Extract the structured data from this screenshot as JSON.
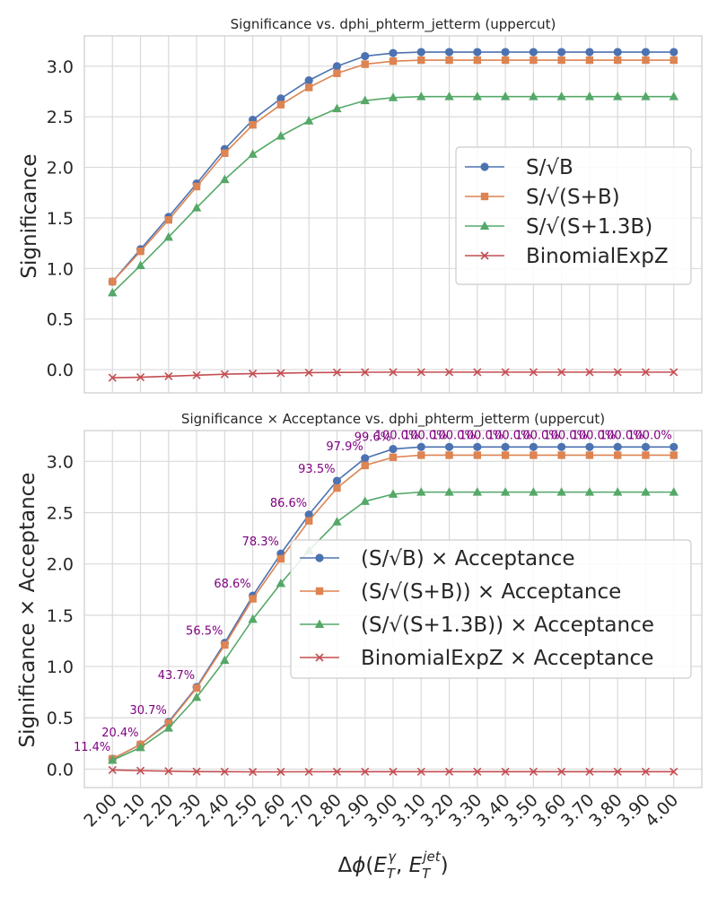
{
  "chart_data": [
    {
      "type": "line",
      "title": "Significance vs. dphi_phterm_jetterm (uppercut)",
      "xlabel": "",
      "ylabel": "Significance",
      "ylim": [
        -0.23,
        3.3
      ],
      "yticks": [
        "0.0",
        "0.5",
        "1.0",
        "1.5",
        "2.0",
        "2.5",
        "3.0"
      ],
      "legend_position": "center-right",
      "x": [
        2.0,
        2.1,
        2.2,
        2.3,
        2.4,
        2.5,
        2.6,
        2.7,
        2.8,
        2.9,
        3.0,
        3.1,
        3.2,
        3.3,
        3.4,
        3.5,
        3.6,
        3.7,
        3.8,
        3.9,
        4.0
      ],
      "series": [
        {
          "name": "S/√B",
          "color": "#4c72b0",
          "marker": "circle",
          "values": [
            0.87,
            1.19,
            1.51,
            1.84,
            2.18,
            2.47,
            2.68,
            2.86,
            3.0,
            3.1,
            3.13,
            3.14,
            3.14,
            3.14,
            3.14,
            3.14,
            3.14,
            3.14,
            3.14,
            3.14,
            3.14
          ]
        },
        {
          "name": "S/√(S+B)",
          "color": "#dd8452",
          "marker": "square",
          "values": [
            0.87,
            1.17,
            1.48,
            1.81,
            2.14,
            2.42,
            2.62,
            2.79,
            2.93,
            3.02,
            3.05,
            3.06,
            3.06,
            3.06,
            3.06,
            3.06,
            3.06,
            3.06,
            3.06,
            3.06,
            3.06
          ]
        },
        {
          "name": "S/√(S+1.3B)",
          "color": "#55a868",
          "marker": "triangle",
          "values": [
            0.76,
            1.03,
            1.31,
            1.6,
            1.88,
            2.13,
            2.31,
            2.46,
            2.58,
            2.66,
            2.69,
            2.7,
            2.7,
            2.7,
            2.7,
            2.7,
            2.7,
            2.7,
            2.7,
            2.7,
            2.7
          ]
        },
        {
          "name": "BinomialExpZ",
          "color": "#c44e52",
          "marker": "x",
          "values": [
            -0.08,
            -0.075,
            -0.065,
            -0.055,
            -0.045,
            -0.04,
            -0.035,
            -0.03,
            -0.028,
            -0.026,
            -0.025,
            -0.025,
            -0.025,
            -0.025,
            -0.025,
            -0.025,
            -0.025,
            -0.025,
            -0.025,
            -0.025,
            -0.025
          ]
        }
      ]
    },
    {
      "type": "line",
      "title": "Significance × Acceptance vs. dphi_phterm_jetterm (uppercut)",
      "xlabel": "Δϕ(E_T^γ, E_T^jet)",
      "ylabel": "Significance × Acceptance",
      "ylim": [
        -0.18,
        3.3
      ],
      "yticks": [
        "0.0",
        "0.5",
        "1.0",
        "1.5",
        "2.0",
        "2.5",
        "3.0"
      ],
      "xticks": [
        "2.00",
        "2.10",
        "2.20",
        "2.30",
        "2.40",
        "2.50",
        "2.60",
        "2.70",
        "2.80",
        "2.90",
        "3.00",
        "3.10",
        "3.20",
        "3.30",
        "3.40",
        "3.50",
        "3.60",
        "3.70",
        "3.80",
        "3.90",
        "4.00"
      ],
      "legend_position": "center-right",
      "x": [
        2.0,
        2.1,
        2.2,
        2.3,
        2.4,
        2.5,
        2.6,
        2.7,
        2.8,
        2.9,
        3.0,
        3.1,
        3.2,
        3.3,
        3.4,
        3.5,
        3.6,
        3.7,
        3.8,
        3.9,
        4.0
      ],
      "acceptance_labels": [
        "11.4%",
        "20.4%",
        "30.7%",
        "43.7%",
        "56.5%",
        "68.6%",
        "78.3%",
        "86.6%",
        "93.5%",
        "97.9%",
        "99.6%",
        "100.0%",
        "100.0%",
        "100.0%",
        "100.0%",
        "100.0%",
        "100.0%",
        "100.0%",
        "100.0%",
        "100.0%",
        "100.0%"
      ],
      "series": [
        {
          "name": "(S/√B) × Acceptance",
          "color": "#4c72b0",
          "marker": "circle",
          "values": [
            0.1,
            0.24,
            0.46,
            0.8,
            1.23,
            1.69,
            2.1,
            2.48,
            2.81,
            3.03,
            3.12,
            3.14,
            3.14,
            3.14,
            3.14,
            3.14,
            3.14,
            3.14,
            3.14,
            3.14,
            3.14
          ]
        },
        {
          "name": "(S/√(S+B)) × Acceptance",
          "color": "#dd8452",
          "marker": "square",
          "values": [
            0.1,
            0.24,
            0.45,
            0.79,
            1.21,
            1.66,
            2.05,
            2.42,
            2.74,
            2.96,
            3.04,
            3.06,
            3.06,
            3.06,
            3.06,
            3.06,
            3.06,
            3.06,
            3.06,
            3.06,
            3.06
          ]
        },
        {
          "name": "(S/√(S+1.3B)) × Acceptance",
          "color": "#55a868",
          "marker": "triangle",
          "values": [
            0.087,
            0.21,
            0.4,
            0.7,
            1.06,
            1.46,
            1.81,
            2.13,
            2.41,
            2.61,
            2.68,
            2.7,
            2.7,
            2.7,
            2.7,
            2.7,
            2.7,
            2.7,
            2.7,
            2.7,
            2.7
          ]
        },
        {
          "name": "BinomialExpZ × Acceptance",
          "color": "#c44e52",
          "marker": "x",
          "values": [
            -0.009,
            -0.015,
            -0.02,
            -0.024,
            -0.025,
            -0.027,
            -0.027,
            -0.026,
            -0.025,
            -0.025,
            -0.025,
            -0.025,
            -0.025,
            -0.025,
            -0.025,
            -0.025,
            -0.025,
            -0.025,
            -0.025,
            -0.025,
            -0.025
          ]
        }
      ]
    }
  ]
}
